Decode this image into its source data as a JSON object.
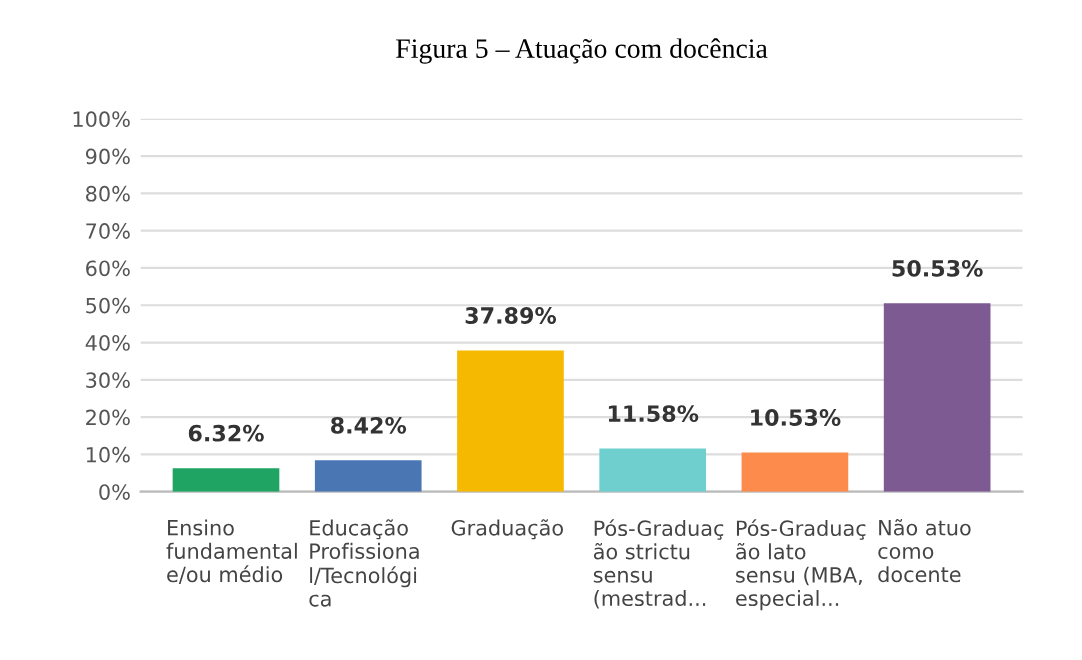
{
  "chart_data": {
    "type": "bar",
    "title": "Figura 5 – Atuação com docência",
    "categories": [
      "Ensino\nfundamental\ne/ou médio",
      "Educação\nProfissiona\nl/Tecnológi\nca",
      "Graduação",
      "Pós-Graduaç\não strictu\nsensu\n(mestrad...",
      "Pós-Graduaç\não lato\nsensu (MBA,\nespecial...",
      "Não atuo\ncomo\ndocente"
    ],
    "values": [
      6.32,
      8.42,
      37.89,
      11.58,
      10.53,
      50.53
    ],
    "colors": [
      "#1fa463",
      "#4a77b4",
      "#f6b901",
      "#6fcfcf",
      "#fd8b4b",
      "#7d5a92"
    ],
    "value_labels": [
      "6.32%",
      "8.42%",
      "37.89%",
      "11.58%",
      "10.53%",
      "50.53%"
    ],
    "ylim": [
      0,
      100
    ],
    "yticks": [
      {
        "value": 0,
        "label": "0%"
      },
      {
        "value": 10,
        "label": "10%"
      },
      {
        "value": 20,
        "label": "20%"
      },
      {
        "value": 30,
        "label": "30%"
      },
      {
        "value": 40,
        "label": "40%"
      },
      {
        "value": 50,
        "label": "50%"
      },
      {
        "value": 60,
        "label": "60%"
      },
      {
        "value": 70,
        "label": "70%"
      },
      {
        "value": 80,
        "label": "80%"
      },
      {
        "value": 90,
        "label": "90%"
      },
      {
        "value": 100,
        "label": "100%"
      }
    ],
    "grid": "y"
  }
}
